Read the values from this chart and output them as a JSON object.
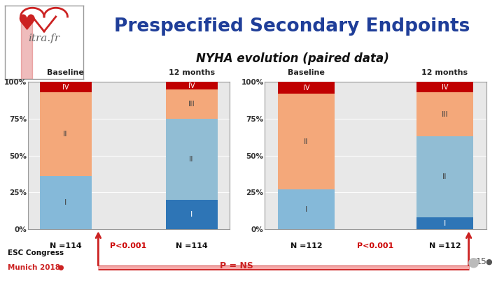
{
  "title_main": "Prespecified Secondary Endpoints",
  "title_sub": "NYHA evolution (paired data)",
  "title_color": "#1F3E99",
  "left_chart": {
    "baseline_label": "Baseline",
    "followup_label": "12 months",
    "n_baseline": "N =114",
    "n_followup": "N =114",
    "p_value": "P<0.001",
    "baseline": {
      "I": 36,
      "II": 57,
      "III": 0,
      "IV": 7
    },
    "followup": {
      "I": 20,
      "II": 55,
      "III": 20,
      "IV": 5
    }
  },
  "right_chart": {
    "baseline_label": "Baseline",
    "followup_label": "12 months",
    "n_baseline": "N =112",
    "n_followup": "N =112",
    "p_value": "P<0.001",
    "baseline": {
      "I": 27,
      "II": 65,
      "III": 0,
      "IV": 8
    },
    "followup": {
      "I": 8,
      "II": 55,
      "III": 30,
      "IV": 7
    }
  },
  "colors": {
    "I_light": "#85B9D9",
    "I_dark": "#2E75B6",
    "II_light": "#91BDD4",
    "III": "#F4A87A",
    "IV": "#C00000"
  },
  "chart_bg": "#E8E8E8",
  "background": "#FFFFFF",
  "ytick_labels": [
    "0%",
    "25%",
    "50%",
    "75%",
    "100%"
  ],
  "ytick_vals": [
    0,
    25,
    50,
    75,
    100
  ]
}
